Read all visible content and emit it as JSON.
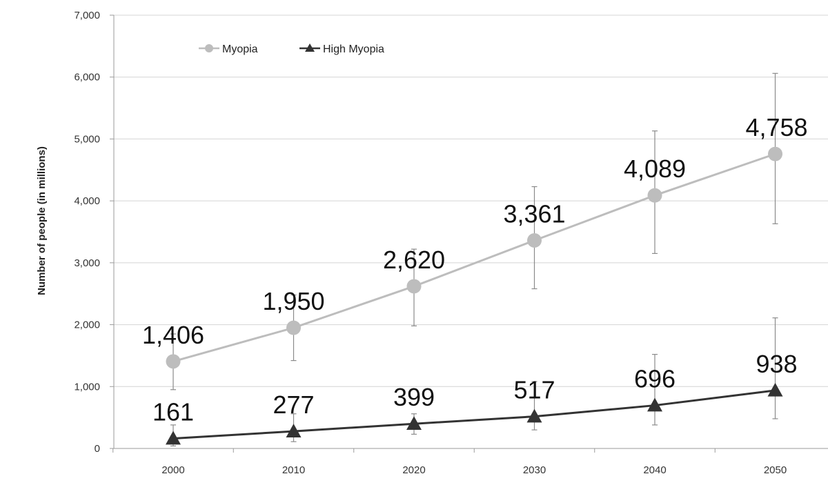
{
  "chart_data": {
    "type": "line",
    "title": "",
    "xlabel": "",
    "ylabel": "Number of people (in millions)",
    "x": [
      2000,
      2010,
      2020,
      2030,
      2040,
      2050
    ],
    "x_tick_labels": [
      "2000",
      "2010",
      "2020",
      "2030",
      "2040",
      "2050"
    ],
    "ylim": [
      0,
      7000
    ],
    "y_ticks": [
      0,
      1000,
      2000,
      3000,
      4000,
      5000,
      6000,
      7000
    ],
    "y_tick_labels": [
      "0",
      "1,000",
      "2,000",
      "3,000",
      "4,000",
      "5,000",
      "6,000",
      "7,000"
    ],
    "grid": true,
    "legend_position": "top-left",
    "series": [
      {
        "name": "Myopia",
        "values": [
          1406,
          1950,
          2620,
          3361,
          4089,
          4758
        ],
        "labels": [
          "1,406",
          "1,950",
          "2,620",
          "3,361",
          "4,089",
          "4,758"
        ],
        "error_low": [
          950,
          1420,
          1980,
          2580,
          3150,
          3630
        ],
        "error_high": [
          1850,
          2480,
          3220,
          4230,
          5130,
          6060
        ],
        "color": "#bdbdbd",
        "marker": "circle"
      },
      {
        "name": "High Myopia",
        "values": [
          161,
          277,
          399,
          517,
          696,
          938
        ],
        "labels": [
          "161",
          "277",
          "399",
          "517",
          "696",
          "938"
        ],
        "error_low": [
          40,
          110,
          230,
          300,
          380,
          480
        ],
        "error_high": [
          380,
          560,
          560,
          1080,
          1520,
          2110
        ],
        "color": "#333333",
        "marker": "triangle"
      }
    ]
  }
}
